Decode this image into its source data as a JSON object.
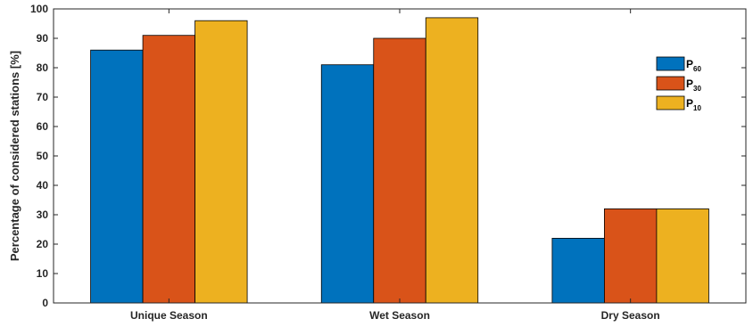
{
  "chart_data": {
    "type": "bar",
    "title": "",
    "xlabel": "",
    "ylabel": "Percentage of considered stations [%]",
    "ylim": [
      0,
      100
    ],
    "yticks": [
      0,
      10,
      20,
      30,
      40,
      50,
      60,
      70,
      80,
      90,
      100
    ],
    "categories": [
      "Unique Season",
      "Wet Season",
      "Dry Season"
    ],
    "series": [
      {
        "name": "P60",
        "label_main": "P",
        "label_sub": "60",
        "color": "#0072BD",
        "values": [
          86,
          81,
          22
        ]
      },
      {
        "name": "P30",
        "label_main": "P",
        "label_sub": "30",
        "color": "#D95319",
        "values": [
          91,
          90,
          32
        ]
      },
      {
        "name": "P10",
        "label_main": "P",
        "label_sub": "10",
        "color": "#EDB120",
        "values": [
          96,
          97,
          32
        ]
      }
    ],
    "grid": false,
    "legend_position": "top-right"
  }
}
